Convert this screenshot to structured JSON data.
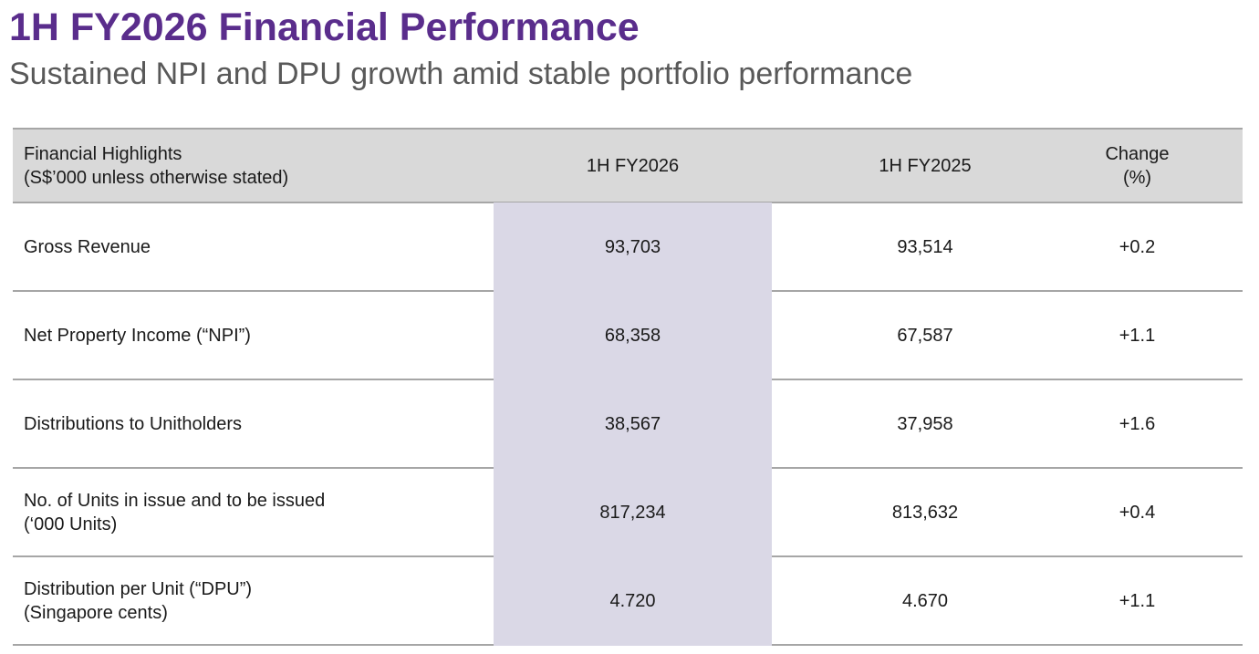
{
  "title": "1H FY2026 Financial Performance",
  "subtitle": "Sustained NPI and DPU growth amid stable portfolio performance",
  "colors": {
    "title": "#5a2d8c",
    "header_bg": "#d9d9d9",
    "highlight_column": "#dad8e6"
  },
  "table": {
    "headers": [
      "Financial Highlights\n(S$’000 unless otherwise stated)",
      "1H FY2026",
      "1H FY2025",
      "Change\n(%)"
    ],
    "rows": [
      [
        "Gross Revenue",
        "93,703",
        "93,514",
        "+0.2"
      ],
      [
        "Net Property Income (“NPI”)",
        "68,358",
        "67,587",
        "+1.1"
      ],
      [
        "Distributions to Unitholders",
        "38,567",
        "37,958",
        "+1.6"
      ],
      [
        "No. of Units in issue and to be issued\n(‘000 Units)",
        "817,234",
        "813,632",
        "+0.4"
      ],
      [
        "Distribution per Unit (“DPU”)\n(Singapore cents)",
        "4.720",
        "4.670",
        "+1.1"
      ]
    ]
  }
}
